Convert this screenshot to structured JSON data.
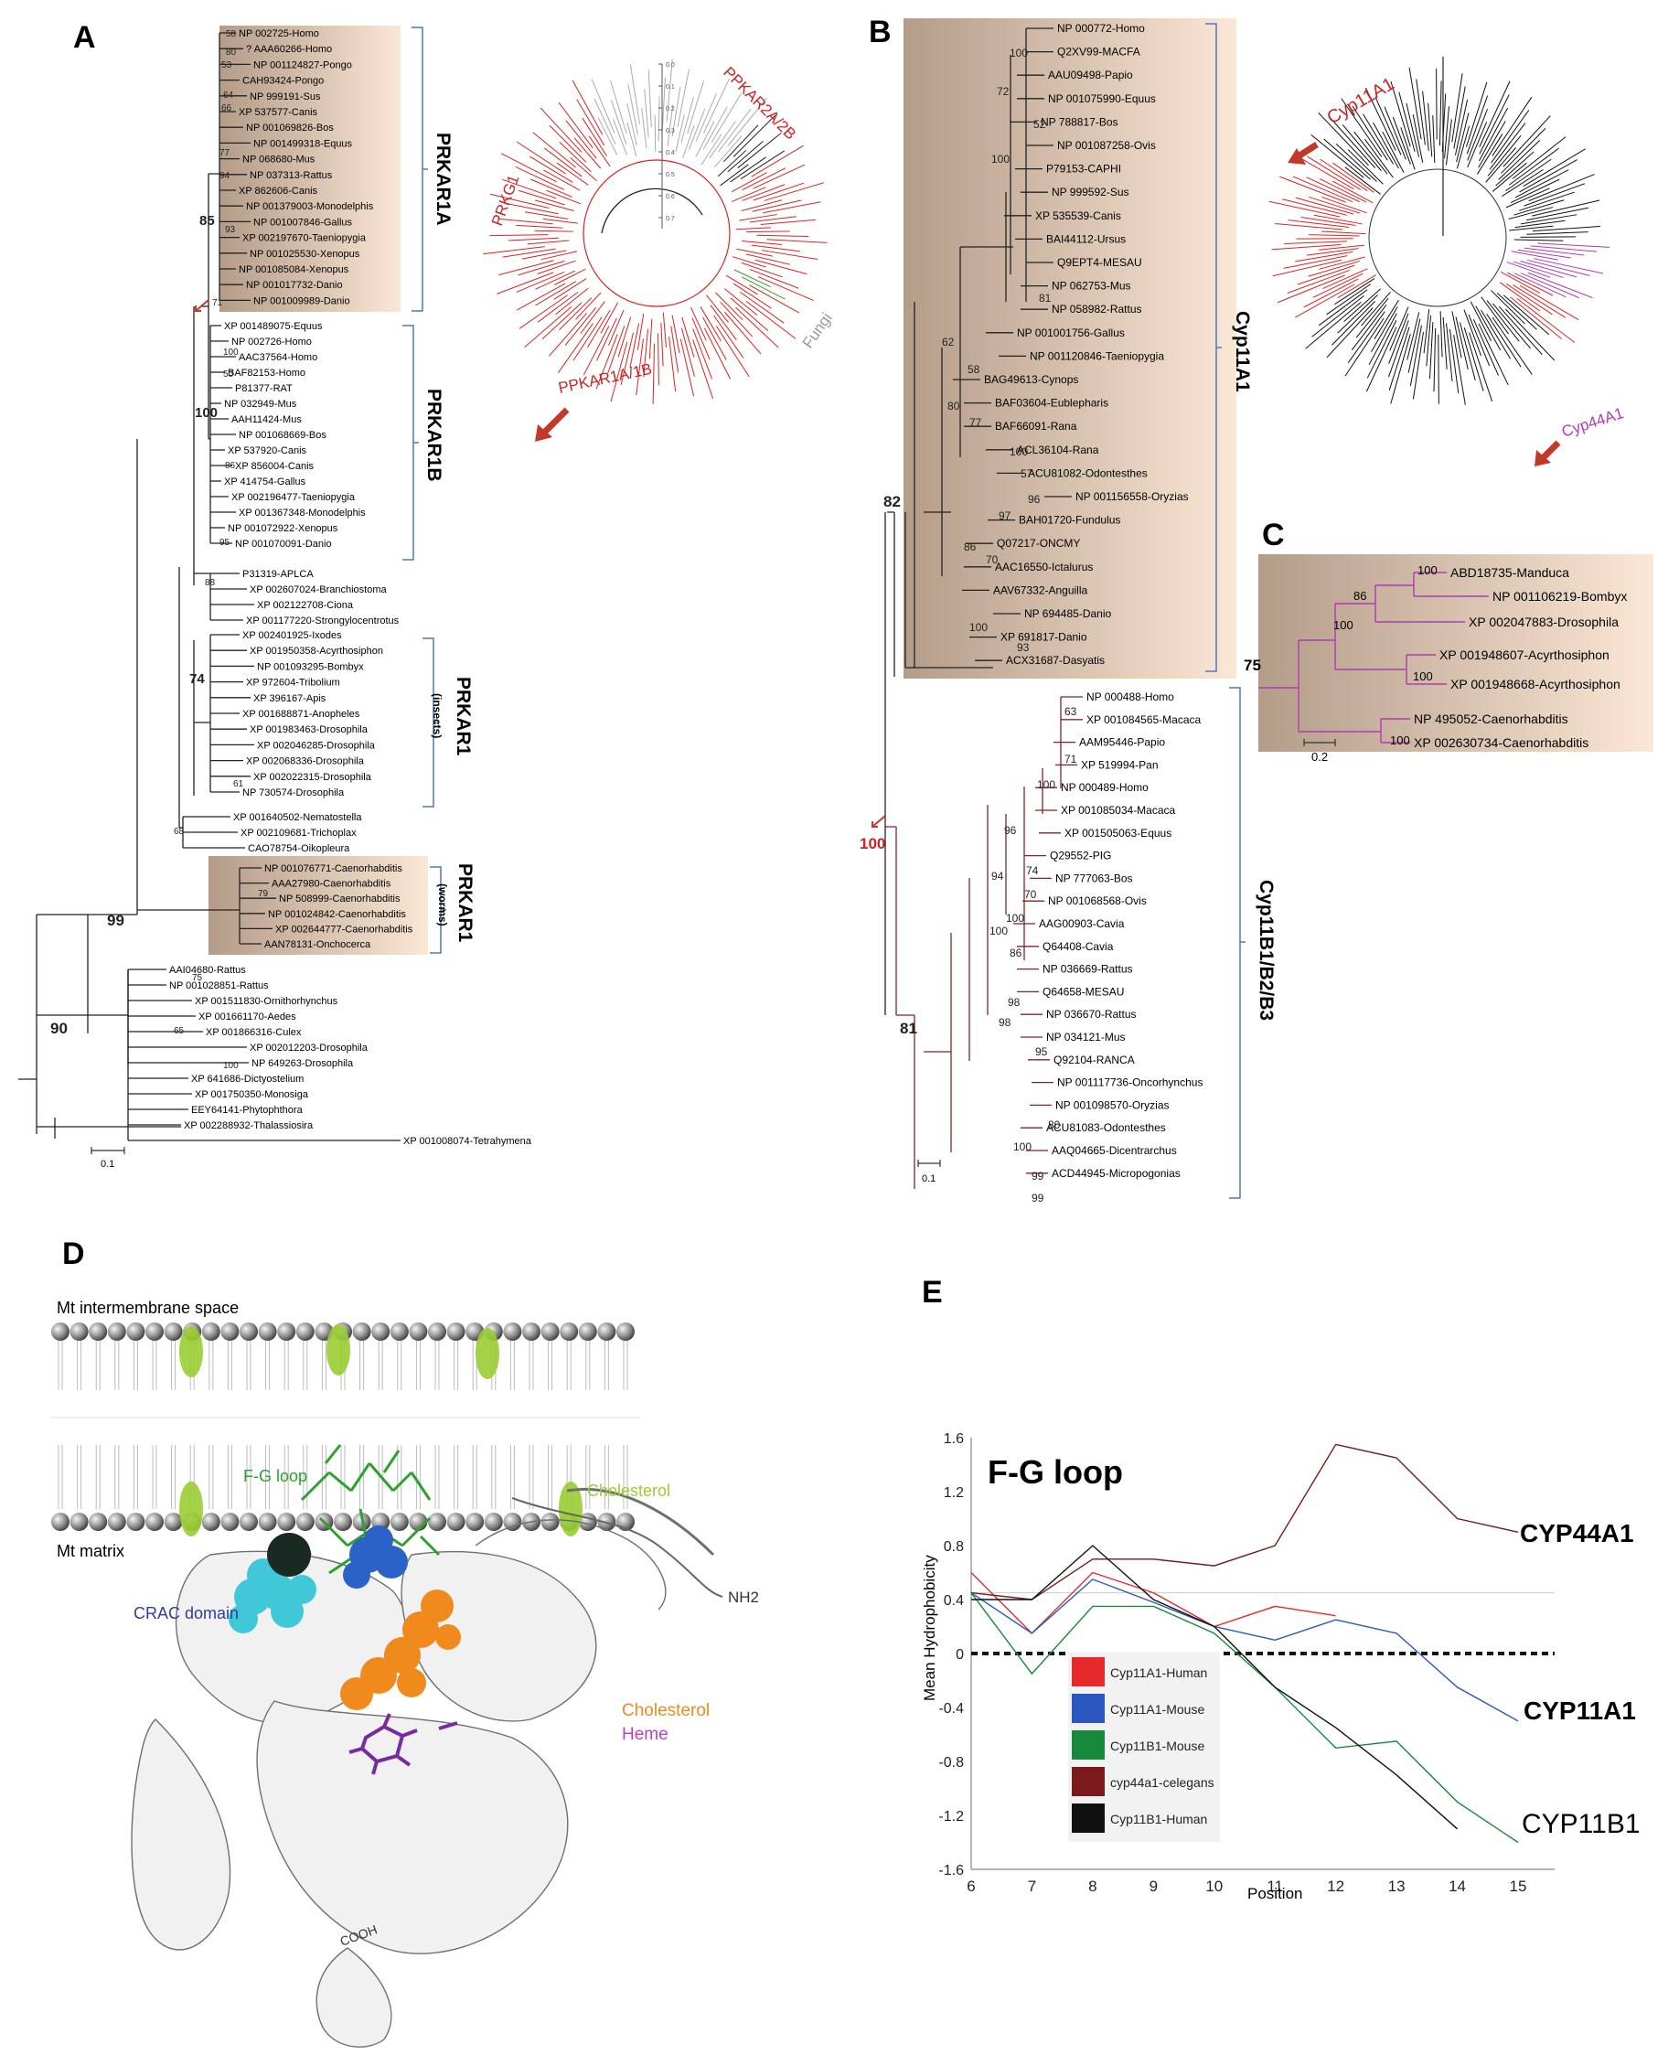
{
  "panel_letters": {
    "a": "A",
    "b": "B",
    "c": "C",
    "d": "D",
    "e": "E"
  },
  "colors": {
    "red": "#cc2222",
    "darkred": "#8a2222",
    "magenta": "#b03ab0",
    "box": "#c9b4a2",
    "green": "#9acd32",
    "blue": "#2a62c8",
    "cyan": "#40c8d8",
    "orange": "#f08a1c",
    "purple": "#7a2aa0"
  },
  "panelA": {
    "groups": {
      "r1a": {
        "label": "PRKAR1A",
        "taxa": [
          "NP 002725-Homo",
          "? AAA60266-Homo",
          "NP 001124827-Pongo",
          "CAH93424-Pongo",
          "NP 999191-Sus",
          "XP 537577-Canis",
          "NP 001069826-Bos",
          "NP 001499318-Equus",
          "NP 068680-Mus",
          "NP 037313-Rattus",
          "XP 862606-Canis",
          "NP 001379003-Monodelphis",
          "NP 001007846-Gallus",
          "XP 002197670-Taeniopygia",
          "NP 001025530-Xenopus",
          "NP 001085084-Xenopus",
          "NP 001017732-Danio",
          "NP 001009989-Danio"
        ]
      },
      "r1b": {
        "label": "PRKAR1B",
        "taxa": [
          "XP 001489075-Equus",
          "NP 002726-Homo",
          "AAC37564-Homo",
          "BAF82153-Homo",
          "P81377-RAT",
          "NP 032949-Mus",
          "AAH11424-Mus",
          "NP 001068669-Bos",
          "XP 537920-Canis",
          "XP 856004-Canis",
          "XP 414754-Gallus",
          "XP 002196477-Taeniopygia",
          "XP 001367348-Monodelphis",
          "NP 001072922-Xenopus",
          "NP 001070091-Danio"
        ]
      },
      "misc1": {
        "taxa": [
          "P31319-APLCA",
          "XP 002607024-Branchiostoma",
          "XP 002122708-Ciona",
          "XP 001177220-Strongylocentrotus"
        ]
      },
      "insects": {
        "label": "PRKAR1",
        "sublabel": "(insects)",
        "taxa": [
          "XP 002401925-Ixodes",
          "XP 001950358-Acyrthosiphon",
          "NP 001093295-Bombyx",
          "XP 972604-Tribolium",
          "XP 396167-Apis",
          "XP 001688871-Anopheles",
          "XP 001983463-Drosophila",
          "XP 002046285-Drosophila",
          "XP 002068336-Drosophila",
          "XP 002022315-Drosophila",
          "NP 730574-Drosophila"
        ]
      },
      "misc2": {
        "taxa": [
          "XP 001640502-Nematostella",
          "XP 002109681-Trichoplax",
          "CAO78754-Oikopleura"
        ]
      },
      "worms": {
        "label": "PRKAR1",
        "sublabel": "(worms)",
        "taxa": [
          "NP 001076771-Caenorhabditis",
          "AAA27980-Caenorhabditis",
          "NP 508999-Caenorhabditis",
          "NP 001024842-Caenorhabditis",
          "XP 002644777-Caenorhabditis",
          "AAN78131-Onchocerca"
        ]
      },
      "misc3": {
        "taxa": [
          "AAI04680-Rattus",
          "NP 001028851-Rattus",
          "XP 001511830-Ornithorhynchus",
          "XP 001661170-Aedes",
          "XP 001866316-Culex",
          "XP 002012203-Drosophila",
          "NP 649263-Drosophila",
          "XP 641686-Dictyostelium",
          "XP 001750350-Monosiga",
          "EEY64141-Phytophthora",
          "XP 002288932-Thalassiosira",
          "XP 001008074-Tetrahymena"
        ]
      }
    },
    "bootstrap": {
      "b85": "85",
      "b100": "100",
      "b74": "74",
      "b99": "99",
      "b90": "90",
      "s58": "58",
      "s80": "80",
      "s53": "53",
      "s64": "64",
      "s66": "66",
      "s77": "77",
      "s94": "94",
      "s93": "93",
      "s71": "71",
      "s100a": "100",
      "s50": "50",
      "s86": "86",
      "s95": "95",
      "s88": "88",
      "s79": "79",
      "s61": "61",
      "s68": "68",
      "s75": "75",
      "s65": "65",
      "s100b": "100"
    },
    "scale": "0.1",
    "circular": {
      "labels": {
        "prkar2": "PPKAR2A/2B",
        "prkg": "PRKG1",
        "prkar1": "PPKAR1A/1B",
        "fungi": "Fungi"
      },
      "ticks": [
        "0.0",
        "0.1",
        "0.2",
        "0.3",
        "0.4",
        "0.5",
        "0.6",
        "0.7"
      ]
    }
  },
  "panelB": {
    "cyp11a1": {
      "label": "Cyp11A1",
      "taxa": [
        "NP 000772-Homo",
        "Q2XV99-MACFA",
        "AAU09498-Papio",
        "NP 001075990-Equus",
        "NP 788817-Bos",
        "NP 001087258-Ovis",
        "P79153-CAPHI",
        "NP 999592-Sus",
        "XP 535539-Canis",
        "BAI44112-Ursus",
        "Q9EPT4-MESAU",
        "NP 062753-Mus",
        "NP 058982-Rattus",
        "NP 001001756-Gallus",
        "NP 001120846-Taeniopygia",
        "BAG49613-Cynops",
        "BAF03604-Eublepharis",
        "BAF66091-Rana",
        "ACL36104-Rana",
        "ACU81082-Odontesthes",
        "NP 001156558-Oryzias",
        "BAH01720-Fundulus",
        "Q07217-ONCMY",
        "AAC16550-Ictalurus",
        "AAV67332-Anguilla",
        "NP 694485-Danio",
        "XP 691817-Danio",
        "ACX31687-Dasyatis"
      ]
    },
    "cyp11b": {
      "label": "Cyp11B1/B2/B3",
      "taxa": [
        "NP 000488-Homo",
        "XP 001084565-Macaca",
        "AAM95446-Papio",
        "XP 519994-Pan",
        "NP 000489-Homo",
        "XP 001085034-Macaca",
        "XP 001505063-Equus",
        "Q29552-PIG",
        "NP 777063-Bos",
        "NP 001068568-Ovis",
        "AAG00903-Cavia",
        "Q64408-Cavia",
        "NP 036669-Rattus",
        "Q64658-MESAU",
        "NP 036670-Rattus",
        "NP 034121-Mus",
        "Q92104-RANCA",
        "NP 001117736-Oncorhynchus",
        "NP 001098570-Oryzias",
        "ACU81083-Odontesthes",
        "AAQ04665-Dicentrarchus",
        "ACD44945-Micropogonias"
      ]
    },
    "bootstrap": {
      "b82": "82",
      "b100": "100",
      "b81": "81",
      "s100a": "100",
      "s72": "72",
      "s52": "52",
      "s100b": "100",
      "s81": "81",
      "s62": "62",
      "s58": "58",
      "s80": "80",
      "s77": "77",
      "s100c": "100",
      "s86": "86",
      "s57": "57",
      "s96": "96",
      "s97": "97",
      "s70": "70",
      "s100d": "100",
      "s93": "93",
      "s63": "63",
      "s71": "71",
      "s100e": "100",
      "s96b": "96",
      "s74": "74",
      "s70b": "70",
      "s100f": "100",
      "s94": "94",
      "s100g": "100",
      "s86b": "86",
      "s98": "98",
      "s95": "95",
      "s98b": "98",
      "s80b": "80",
      "s100h": "100",
      "s99a": "99",
      "s99b": "99"
    },
    "scale": "0.1",
    "circular": {
      "labels": {
        "cyp11a1": "Cyp11A1",
        "cyp44a1": "Cyp44A1"
      }
    }
  },
  "panelC": {
    "taxa": [
      "ABD18735-Manduca",
      "NP 001106219-Bombyx",
      "XP 002047883-Drosophila",
      "XP 001948607-Acyrthosiphon",
      "XP 001948668-Acyrthosiphon",
      "NP 495052-Caenorhabditis",
      "XP 002630734-Caenorhabditis"
    ],
    "bootstrap": {
      "b75": "75",
      "s100a": "100",
      "s86": "86",
      "s100b": "100",
      "s100c": "100",
      "s100d": "100"
    },
    "scale": "0.2"
  },
  "panelD": {
    "space": "Mt intermembrane space",
    "matrix": "Mt matrix",
    "fg": "F-G loop",
    "chol_top": "Cholesterol",
    "crac": "CRAC domain",
    "chol": "Cholesterol",
    "heme": "Heme",
    "nh2": "NH2",
    "cooh": "COOH"
  },
  "chart_data": {
    "type": "line",
    "title": "F-G loop",
    "xlabel": "Position",
    "ylabel": "Mean Hydrophobicity",
    "x": [
      6,
      7,
      8,
      9,
      10,
      11,
      12,
      13,
      14,
      15
    ],
    "xlim": [
      6,
      15
    ],
    "ylim": [
      -1.6,
      1.6
    ],
    "yticks": [
      "1.6",
      "1.2",
      "0.8",
      "0.4",
      "0",
      "-0.4",
      "-0.8",
      "-1.2",
      "-1.6"
    ],
    "series": [
      {
        "name": "Cyp11A1-Human",
        "color": "#e52a2a",
        "values": [
          0.6,
          0.15,
          0.6,
          0.45,
          0.2,
          0.35,
          0.28,
          null,
          null,
          null
        ]
      },
      {
        "name": "Cyp11A1-Mouse",
        "color": "#2a56c0",
        "values": [
          0.45,
          0.15,
          0.55,
          0.38,
          0.2,
          0.1,
          0.25,
          0.15,
          -0.25,
          -0.5
        ]
      },
      {
        "name": "Cyp11B1-Mouse",
        "color": "#168a3a",
        "values": [
          0.45,
          -0.15,
          0.35,
          0.35,
          0.15,
          -0.25,
          -0.7,
          -0.65,
          -1.1,
          -1.4
        ]
      },
      {
        "name": "cyp44a1-celegans",
        "color": "#7a1a1a",
        "values": [
          0.45,
          0.4,
          0.7,
          0.7,
          0.65,
          0.8,
          1.55,
          1.45,
          1.0,
          0.9
        ]
      },
      {
        "name": "Cyp11B1-Human",
        "color": "#111111",
        "values": [
          0.4,
          0.4,
          0.8,
          0.4,
          0.2,
          -0.25,
          -0.55,
          -0.9,
          -1.3,
          null
        ]
      }
    ],
    "reference_line": 0.45,
    "annotations": {
      "cyp44": "CYP44A1",
      "cyp11a": "CYP11A1",
      "cyp11b": "CYP11B1"
    }
  }
}
